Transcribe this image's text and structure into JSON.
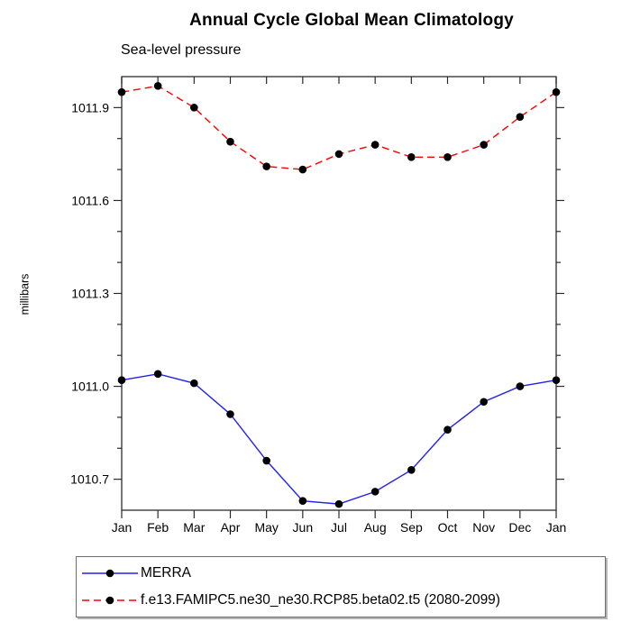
{
  "chart_data": {
    "type": "line",
    "title": "Annual Cycle Global Mean Climatology",
    "subtitle": "Sea-level pressure",
    "xlabel": "",
    "ylabel": "millibars",
    "categories": [
      "Jan",
      "Feb",
      "Mar",
      "Apr",
      "May",
      "Jun",
      "Jul",
      "Aug",
      "Sep",
      "Oct",
      "Nov",
      "Dec",
      "Jan"
    ],
    "ylim": [
      1010.6,
      1012.0
    ],
    "y_major_ticks": [
      1010.7,
      1011.0,
      1011.3,
      1011.6,
      1011.9
    ],
    "y_minor_step": 0.1,
    "grid": false,
    "legend_position": "bottom-left",
    "series": [
      {
        "name": "MERRA",
        "line_style": "solid",
        "color": "#2222ee",
        "marker": "circle",
        "marker_color": "#000000",
        "values": [
          1011.02,
          1011.04,
          1011.01,
          1010.91,
          1010.76,
          1010.63,
          1010.62,
          1010.66,
          1010.73,
          1010.86,
          1010.95,
          1011.0,
          1011.02
        ]
      },
      {
        "name": "f.e13.FAMIPC5.ne30_ne30.RCP85.beta02.t5 (2080-2099)",
        "line_style": "dashed",
        "color": "#ff0000",
        "marker": "circle",
        "marker_color": "#000000",
        "values": [
          1011.95,
          1011.97,
          1011.9,
          1011.79,
          1011.71,
          1011.7,
          1011.75,
          1011.78,
          1011.74,
          1011.74,
          1011.78,
          1011.87,
          1011.95
        ]
      }
    ]
  },
  "colors": {
    "background": "#ffffff",
    "axis_frame": "#3c3c3c",
    "tick": "#2a2a2a",
    "label_text": "#000000"
  }
}
